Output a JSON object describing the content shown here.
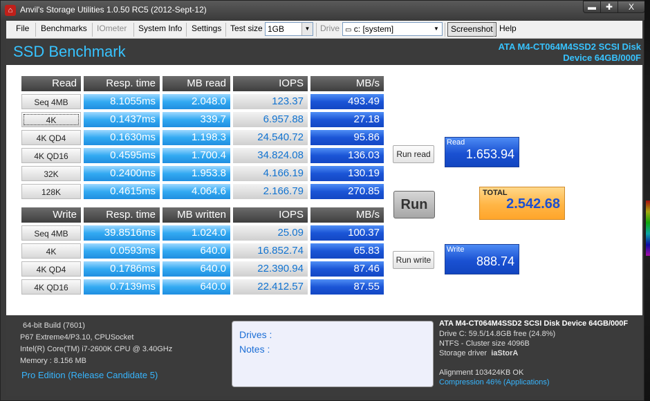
{
  "window": {
    "title": "Anvil's Storage Utilities 1.0.50 RC5 (2012-Sept-12)",
    "min": "▬",
    "max": "✚",
    "close": "X"
  },
  "menu": {
    "file": "File",
    "benchmarks": "Benchmarks",
    "iometer": "IOmeter",
    "system_info": "System Info",
    "settings": "Settings",
    "test_size_label": "Test size",
    "test_size_value": "1GB",
    "drive_label": "Drive",
    "drive_value": "c: [system]",
    "screenshot": "Screenshot",
    "help": "Help"
  },
  "header": {
    "title": "SSD Benchmark",
    "device_line1": "ATA M4-CT064M4SSD2 SCSI Disk",
    "device_line2": "Device 64GB/000F"
  },
  "read_table": {
    "headers": [
      "Read",
      "Resp. time",
      "MB read",
      "IOPS",
      "MB/s"
    ],
    "rows": [
      [
        "Seq 4MB",
        "8.1055ms",
        "2.048.0",
        "123.37",
        "493.49"
      ],
      [
        "4K",
        "0.1437ms",
        "339.7",
        "6.957.88",
        "27.18"
      ],
      [
        "4K QD4",
        "0.1630ms",
        "1.198.3",
        "24.540.72",
        "95.86"
      ],
      [
        "4K QD16",
        "0.4595ms",
        "1.700.4",
        "34.824.08",
        "136.03"
      ],
      [
        "32K",
        "0.2400ms",
        "1.953.8",
        "4.166.19",
        "130.19"
      ],
      [
        "128K",
        "0.4615ms",
        "4.064.6",
        "2.166.79",
        "270.85"
      ]
    ]
  },
  "write_table": {
    "headers": [
      "Write",
      "Resp. time",
      "MB written",
      "IOPS",
      "MB/s"
    ],
    "rows": [
      [
        "Seq 4MB",
        "39.8516ms",
        "1.024.0",
        "25.09",
        "100.37"
      ],
      [
        "4K",
        "0.0593ms",
        "640.0",
        "16.852.74",
        "65.83"
      ],
      [
        "4K QD4",
        "0.1786ms",
        "640.0",
        "22.390.94",
        "87.46"
      ],
      [
        "4K QD16",
        "0.7139ms",
        "640.0",
        "22.412.57",
        "87.55"
      ]
    ]
  },
  "buttons": {
    "run_read": "Run read",
    "run": "Run",
    "run_write": "Run write"
  },
  "scores": {
    "read_label": "Read",
    "read_value": "1.653.94",
    "total_label": "TOTAL",
    "total_value": "2.542.68",
    "write_label": "Write",
    "write_value": "888.74"
  },
  "system": {
    "build": "64-bit Build (7601)",
    "board": "P67 Extreme4/P3.10, CPUSocket",
    "cpu": "Intel(R) Core(TM) i7-2600K CPU @ 3.40GHz",
    "memory": "Memory : 8.156 MB",
    "edition": "Pro Edition (Release Candidate 5)"
  },
  "notes": {
    "drives": "Drives :",
    "notes": "Notes :"
  },
  "drive_info": {
    "title": "ATA M4-CT064M4SSD2 SCSI Disk Device 64GB/000F",
    "drive_c": "Drive C: 59.5/14.8GB free (24.8%)",
    "ntfs": "NTFS - Cluster size 4096B",
    "driver_label": "Storage driver",
    "driver_value": "iaStorA",
    "alignment": "Alignment 103424KB OK",
    "compression": "Compression 46% (Applications)"
  },
  "colors": {
    "accent": "#37c3ff",
    "blue_cell": "#33aaf2",
    "dark_blue_cell": "#1b55d6",
    "total_orange": "#ffb545"
  }
}
